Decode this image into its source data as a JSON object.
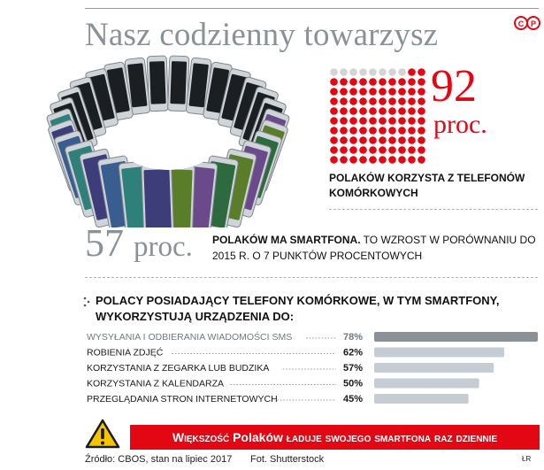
{
  "header": {
    "title": "Nasz codzienny towarzysz",
    "logo_text": "©P"
  },
  "stat_92": {
    "value": "92",
    "unit": "proc.",
    "caption": "Polaków korzysta z telefonów komórkowych",
    "percent": 92,
    "total_dots": 100
  },
  "stat_57": {
    "value": "57",
    "unit": "proc.",
    "caption_bold": "Polaków ma smartfona.",
    "caption_rest": " To wzrost w porównaniu do 2015 r. o 7 punktów procentowych"
  },
  "chart_data": {
    "type": "bar",
    "title": "Polacy posiadający telefony komórkowe, w tym smartfony, wykorzystują urządzenia do:",
    "categories": [
      "Wysyłania i odbierania wiadomości SMS",
      "Robienia zdjęć",
      "Korzystania z zegarka lub budzika",
      "Korzystania z kalendarza",
      "Przeglądania stron internetowych"
    ],
    "values": [
      78,
      62,
      57,
      50,
      45
    ],
    "value_labels": [
      "78%",
      "62%",
      "57%",
      "50%",
      "45%"
    ],
    "unit": "%",
    "xlim": [
      0,
      100
    ],
    "orientation": "horizontal",
    "grid": false,
    "colors": {
      "highlight_bar": "#8a9298",
      "bar": "#c5ccd3",
      "highlight_label": "#6f7a82",
      "label": "#1a1a1a"
    }
  },
  "banner": {
    "part1": "Większość",
    "part2": " Polaków ",
    "part3": "ładuje swojego smartfona raz dziennie"
  },
  "footer": {
    "source": "Źródło: CBOS, stan na lipiec 2017",
    "photo": "Fot. Shutterstock",
    "author": "ŁR"
  },
  "colors": {
    "accent_red": "#e30613",
    "dot_gray": "#d4d4d4",
    "title_gray": "#8a9298"
  },
  "icons": {
    "warning": "warning-triangle-icon",
    "bullet": "dotted-bullet-icon"
  }
}
